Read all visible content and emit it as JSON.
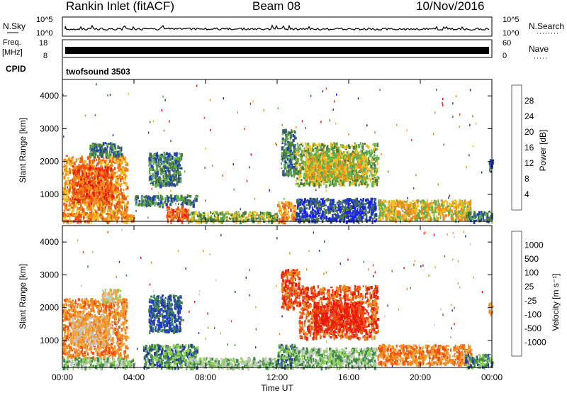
{
  "header": {
    "station": "Rankin Inlet (fitACF)",
    "beam": "Beam 08",
    "date": "10/Nov/2016"
  },
  "strip_labels": {
    "nsky": "N.Sky",
    "nsearch": "N.Search",
    "nsky_ticks": [
      "10^5",
      "10^0"
    ],
    "freq_line1": "Freq.",
    "freq_line2": "[MHz]",
    "freq_ticks": [
      "18",
      "8"
    ],
    "nave": "Nave",
    "nave_ticks": [
      "60",
      "0"
    ],
    "cpid": "CPID",
    "cpid_value": "twofsound 3503"
  },
  "colors": {
    "power": [
      "#1a1aff",
      "#2244aa",
      "#4c7a3c",
      "#5fb04d",
      "#f0c020",
      "#f08a1a",
      "#f05010",
      "#e81a10"
    ],
    "velocity": [
      "#e81a10",
      "#f05010",
      "#f08a1a",
      "#f5a43a",
      "#c8c8c8",
      "#8ed05a",
      "#3f8a4a",
      "#2a3aa0",
      "#2040d0"
    ]
  },
  "chart_data": [
    {
      "type": "heatmap",
      "name": "power",
      "ylabel": "Slant Range [km]",
      "xlabel": "",
      "xlim": [
        0,
        24
      ],
      "ylim": [
        180,
        4500
      ],
      "yticks": [
        1000,
        2000,
        3000,
        4000
      ],
      "colorbar_label": "Power [dB]",
      "colorbar_ticks": [
        "4",
        "8",
        "12",
        "16",
        "20",
        "24",
        "28"
      ],
      "colorbar_range": [
        0,
        32
      ],
      "regions": [
        {
          "t0": 0.0,
          "t1": 3.6,
          "r0": 400,
          "r1": 2200,
          "value": 22
        },
        {
          "t0": 0.5,
          "t1": 2.8,
          "r0": 800,
          "r1": 1900,
          "value": 27
        },
        {
          "t0": 1.5,
          "t1": 3.3,
          "r0": 2200,
          "r1": 2600,
          "value": 13
        },
        {
          "t0": 0.0,
          "t1": 4.0,
          "r0": 200,
          "r1": 450,
          "value": 24
        },
        {
          "t0": 4.8,
          "t1": 6.6,
          "r0": 1300,
          "r1": 2300,
          "value": 13
        },
        {
          "t0": 4.0,
          "t1": 7.5,
          "r0": 700,
          "r1": 1000,
          "value": 10
        },
        {
          "t0": 5.8,
          "t1": 7.0,
          "r0": 200,
          "r1": 650,
          "value": 26
        },
        {
          "t0": 7.0,
          "t1": 12.0,
          "r0": 200,
          "r1": 500,
          "value": 14
        },
        {
          "t0": 12.2,
          "t1": 13.0,
          "r0": 1600,
          "r1": 3000,
          "value": 12
        },
        {
          "t0": 12.0,
          "t1": 13.0,
          "r0": 200,
          "r1": 800,
          "value": 22
        },
        {
          "t0": 13.0,
          "t1": 17.6,
          "r0": 1300,
          "r1": 2600,
          "value": 14
        },
        {
          "t0": 13.5,
          "t1": 17.0,
          "r0": 1500,
          "r1": 2300,
          "value": 18
        },
        {
          "t0": 13.0,
          "t1": 17.5,
          "r0": 200,
          "r1": 900,
          "value": 9
        },
        {
          "t0": 17.6,
          "t1": 22.8,
          "r0": 250,
          "r1": 850,
          "value": 21
        },
        {
          "t0": 22.5,
          "t1": 24.0,
          "r0": 200,
          "r1": 500,
          "value": 10
        },
        {
          "t0": 23.8,
          "t1": 24.0,
          "r0": 1700,
          "r1": 2100,
          "value": 6
        }
      ]
    },
    {
      "type": "heatmap",
      "name": "velocity",
      "ylabel": "Slant Range [km]",
      "xlabel": "Time UT",
      "xlim": [
        0,
        24
      ],
      "ylim": [
        180,
        4500
      ],
      "yticks": [
        1000,
        2000,
        3000,
        4000
      ],
      "xticks": [
        "00:00",
        "04:00",
        "08:00",
        "12:00",
        "16:00",
        "20:00",
        "00:00"
      ],
      "colorbar_label": "Velocity [m s⁻¹]",
      "colorbar_ticks": [
        "-1000",
        "-500",
        "-100",
        "-25",
        "25",
        "100",
        "500",
        "1000"
      ],
      "regions": [
        {
          "t0": 0.0,
          "t1": 3.6,
          "r0": 500,
          "r1": 2300,
          "value": 2
        },
        {
          "t0": 0.5,
          "t1": 2.6,
          "r0": 900,
          "r1": 1800,
          "value": 3
        },
        {
          "t0": 2.2,
          "t1": 3.2,
          "r0": 2200,
          "r1": 2600,
          "value": 4
        },
        {
          "t0": 0.0,
          "t1": 4.0,
          "r0": 200,
          "r1": 500,
          "value": 5
        },
        {
          "t0": 4.8,
          "t1": 6.6,
          "r0": 1300,
          "r1": 2400,
          "value": 7
        },
        {
          "t0": 4.5,
          "t1": 7.5,
          "r0": 200,
          "r1": 900,
          "value": 6
        },
        {
          "t0": 7.0,
          "t1": 12.0,
          "r0": 200,
          "r1": 500,
          "value": 5
        },
        {
          "t0": 12.2,
          "t1": 13.2,
          "r0": 2000,
          "r1": 3200,
          "value": 1
        },
        {
          "t0": 12.0,
          "t1": 13.0,
          "r0": 200,
          "r1": 900,
          "value": 6
        },
        {
          "t0": 13.2,
          "t1": 17.6,
          "r0": 1100,
          "r1": 2700,
          "value": 1
        },
        {
          "t0": 14.0,
          "t1": 16.8,
          "r0": 1300,
          "r1": 2200,
          "value": 0
        },
        {
          "t0": 13.0,
          "t1": 17.5,
          "r0": 200,
          "r1": 800,
          "value": 5
        },
        {
          "t0": 17.6,
          "t1": 22.8,
          "r0": 300,
          "r1": 900,
          "value": 2
        },
        {
          "t0": 22.5,
          "t1": 24.0,
          "r0": 200,
          "r1": 600,
          "value": 6
        },
        {
          "t0": 23.8,
          "t1": 24.0,
          "r0": 1800,
          "r1": 2200,
          "value": 3
        }
      ]
    }
  ]
}
